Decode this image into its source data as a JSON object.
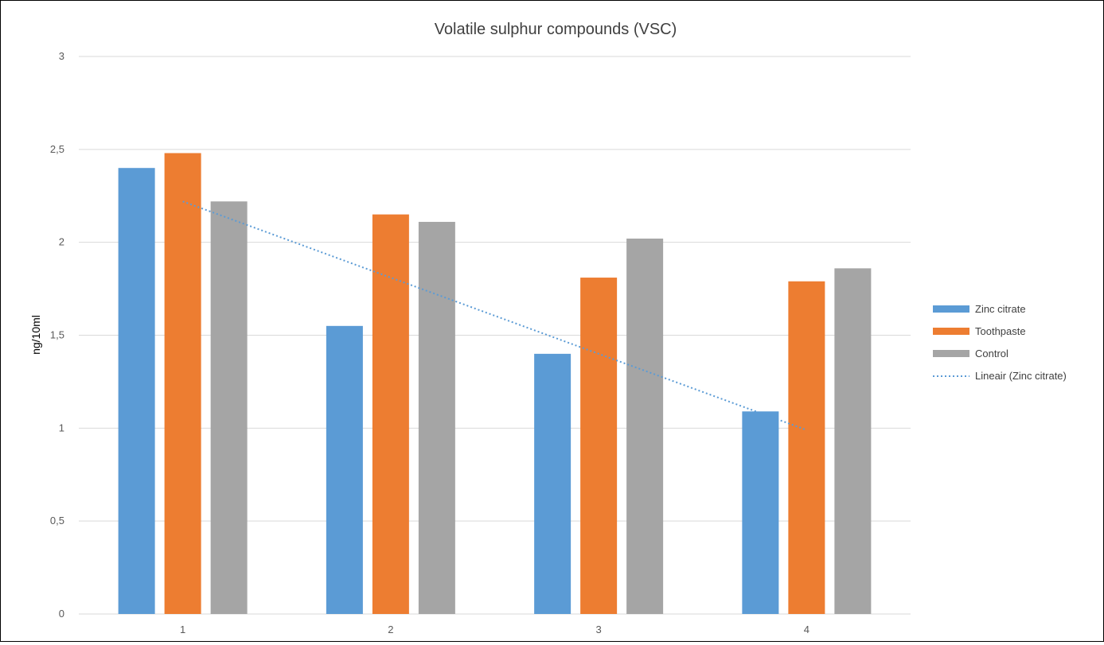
{
  "chart_data": {
    "type": "bar",
    "title": "Volatile sulphur compounds (VSC)",
    "xlabel": "",
    "ylabel": "ng/10ml",
    "categories": [
      "1",
      "2",
      "3",
      "4"
    ],
    "ylim": [
      0,
      3
    ],
    "y_ticks": [
      "0",
      "0,5",
      "1",
      "1,5",
      "2",
      "2,5",
      "3"
    ],
    "y_tick_values": [
      0,
      0.5,
      1,
      1.5,
      2,
      2.5,
      3
    ],
    "grid": true,
    "legend_position": "right",
    "series": [
      {
        "name": "Zinc citrate",
        "color": "#5B9BD5",
        "values": [
          2.4,
          1.55,
          1.4,
          1.09
        ]
      },
      {
        "name": "Toothpaste",
        "color": "#ED7D31",
        "values": [
          2.48,
          2.15,
          1.81,
          1.79
        ]
      },
      {
        "name": "Control",
        "color": "#A5A5A5",
        "values": [
          2.22,
          2.11,
          2.02,
          1.86
        ]
      }
    ],
    "trendline": {
      "name": "Lineair (Zinc citrate)",
      "color": "#5B9BD5",
      "style": "dotted",
      "values": [
        2.22,
        1.81,
        1.4,
        0.99
      ]
    }
  }
}
